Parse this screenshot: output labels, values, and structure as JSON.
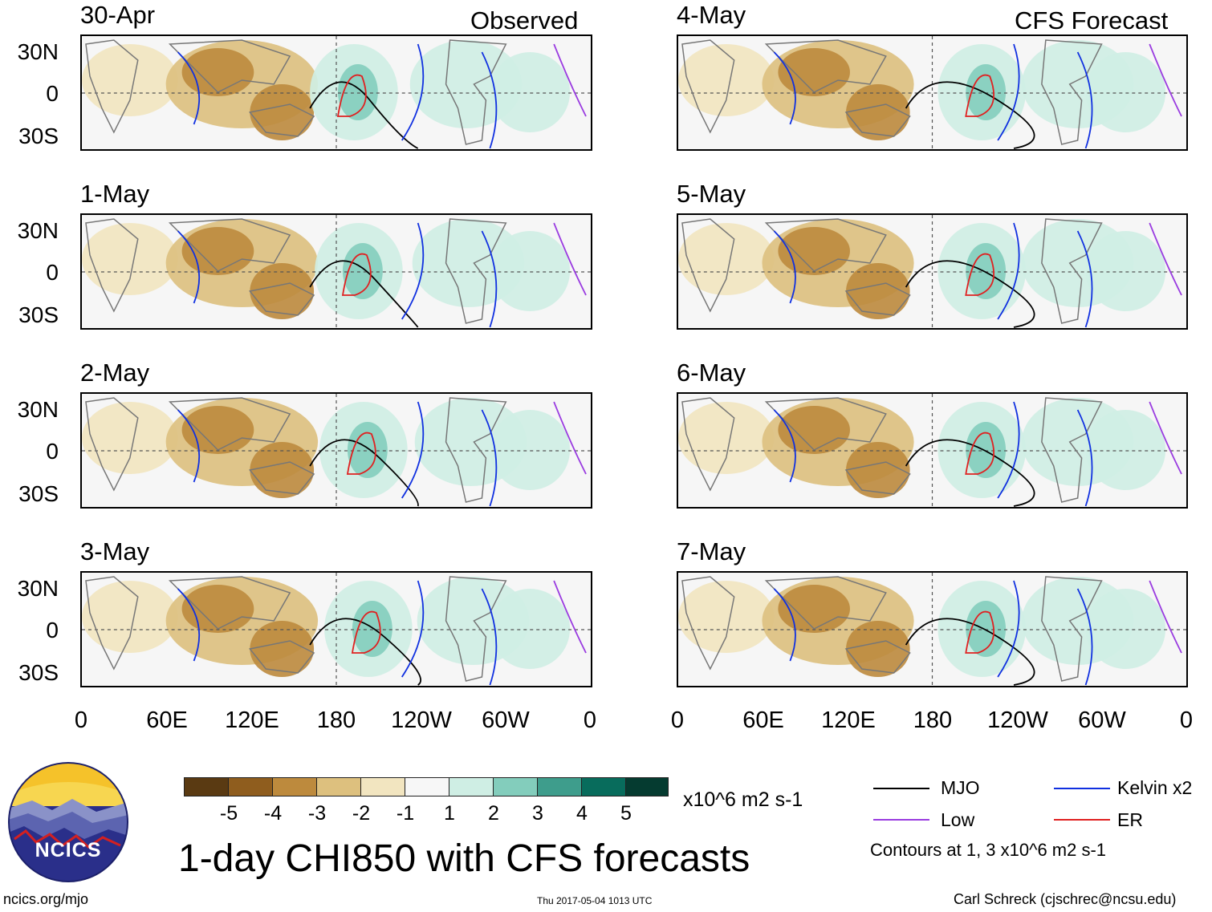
{
  "headings": {
    "observed": "Observed",
    "forecast": "CFS Forecast"
  },
  "left_dates": [
    "30-Apr",
    "1-May",
    "2-May",
    "3-May"
  ],
  "right_dates": [
    "4-May",
    "5-May",
    "6-May",
    "7-May"
  ],
  "lat_ticks": [
    "30N",
    "0",
    "30S"
  ],
  "lon_ticks": [
    "0",
    "60E",
    "120E",
    "180",
    "120W",
    "60W",
    "0"
  ],
  "colorbar": {
    "colors": [
      "#5a3a12",
      "#8f5d1e",
      "#bd8a3d",
      "#ddc07e",
      "#f2e5c0",
      "#f7f7f7",
      "#cfeee4",
      "#83cdbc",
      "#3e9d8c",
      "#086c5c",
      "#053b30"
    ],
    "ticks": [
      "-5",
      "-4",
      "-3",
      "-2",
      "-1",
      "1",
      "2",
      "3",
      "4",
      "5"
    ],
    "units": "x10^6 m2 s-1"
  },
  "title": "1-day CHI850 with CFS forecasts",
  "legend": {
    "items": [
      {
        "label": "MJO",
        "color": "#000000"
      },
      {
        "label": "Kelvin x2",
        "color": "#1030e0"
      },
      {
        "label": "Low",
        "color": "#9a3ce0"
      },
      {
        "label": "ER",
        "color": "#e02020"
      }
    ],
    "contours_note": "Contours at 1, 3 x10^6 m2 s-1"
  },
  "logo": {
    "text": "NCICS"
  },
  "footer": {
    "url": "ncics.org/mjo",
    "timestamp": "Thu 2017-05-04 1013 UTC",
    "author": "Carl Schreck (cjschrec@ncsu.edu)"
  }
}
